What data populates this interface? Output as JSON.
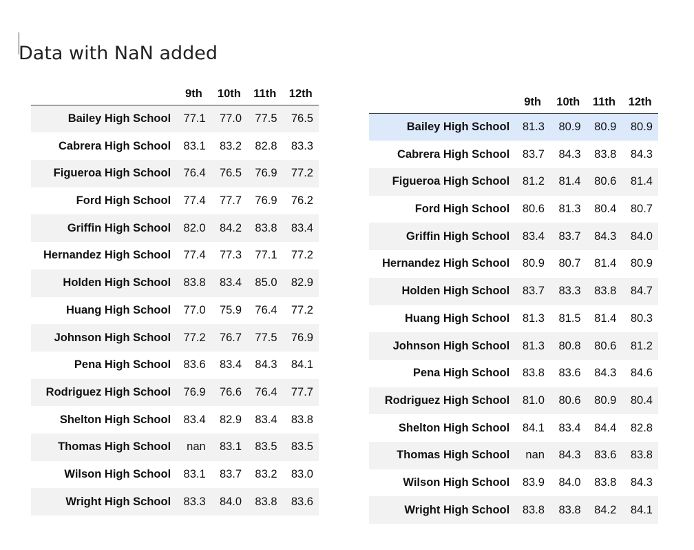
{
  "title": "Data with NaN added",
  "left_table": {
    "columns": [
      "",
      "9th",
      "10th",
      "11th",
      "12th"
    ],
    "rows": [
      {
        "name": "Bailey High School",
        "values": [
          "77.1",
          "77.0",
          "77.5",
          "76.5"
        ]
      },
      {
        "name": "Cabrera High School",
        "values": [
          "83.1",
          "83.2",
          "82.8",
          "83.3"
        ]
      },
      {
        "name": "Figueroa High School",
        "values": [
          "76.4",
          "76.5",
          "76.9",
          "77.2"
        ]
      },
      {
        "name": "Ford High School",
        "values": [
          "77.4",
          "77.7",
          "76.9",
          "76.2"
        ]
      },
      {
        "name": "Griffin High School",
        "values": [
          "82.0",
          "84.2",
          "83.8",
          "83.4"
        ]
      },
      {
        "name": "Hernandez High School",
        "values": [
          "77.4",
          "77.3",
          "77.1",
          "77.2"
        ]
      },
      {
        "name": "Holden High School",
        "values": [
          "83.8",
          "83.4",
          "85.0",
          "82.9"
        ]
      },
      {
        "name": "Huang High School",
        "values": [
          "77.0",
          "75.9",
          "76.4",
          "77.2"
        ]
      },
      {
        "name": "Johnson High School",
        "values": [
          "77.2",
          "76.7",
          "77.5",
          "76.9"
        ]
      },
      {
        "name": "Pena High School",
        "values": [
          "83.6",
          "83.4",
          "84.3",
          "84.1"
        ]
      },
      {
        "name": "Rodriguez High School",
        "values": [
          "76.9",
          "76.6",
          "76.4",
          "77.7"
        ]
      },
      {
        "name": "Shelton High School",
        "values": [
          "83.4",
          "82.9",
          "83.4",
          "83.8"
        ]
      },
      {
        "name": "Thomas High School",
        "values": [
          "nan",
          "83.1",
          "83.5",
          "83.5"
        ]
      },
      {
        "name": "Wilson High School",
        "values": [
          "83.1",
          "83.7",
          "83.2",
          "83.0"
        ]
      },
      {
        "name": "Wright High School",
        "values": [
          "83.3",
          "84.0",
          "83.8",
          "83.6"
        ]
      }
    ]
  },
  "right_table": {
    "columns": [
      "",
      "9th",
      "10th",
      "11th",
      "12th"
    ],
    "highlighted_row": 0,
    "highlight_color": "#dbe9fb",
    "rows": [
      {
        "name": "Bailey High School",
        "values": [
          "81.3",
          "80.9",
          "80.9",
          "80.9"
        ]
      },
      {
        "name": "Cabrera High School",
        "values": [
          "83.7",
          "84.3",
          "83.8",
          "84.3"
        ]
      },
      {
        "name": "Figueroa High School",
        "values": [
          "81.2",
          "81.4",
          "80.6",
          "81.4"
        ]
      },
      {
        "name": "Ford High School",
        "values": [
          "80.6",
          "81.3",
          "80.4",
          "80.7"
        ]
      },
      {
        "name": "Griffin High School",
        "values": [
          "83.4",
          "83.7",
          "84.3",
          "84.0"
        ]
      },
      {
        "name": "Hernandez High School",
        "values": [
          "80.9",
          "80.7",
          "81.4",
          "80.9"
        ]
      },
      {
        "name": "Holden High School",
        "values": [
          "83.7",
          "83.3",
          "83.8",
          "84.7"
        ]
      },
      {
        "name": "Huang High School",
        "values": [
          "81.3",
          "81.5",
          "81.4",
          "80.3"
        ]
      },
      {
        "name": "Johnson High School",
        "values": [
          "81.3",
          "80.8",
          "80.6",
          "81.2"
        ]
      },
      {
        "name": "Pena High School",
        "values": [
          "83.8",
          "83.6",
          "84.3",
          "84.6"
        ]
      },
      {
        "name": "Rodriguez High School",
        "values": [
          "81.0",
          "80.6",
          "80.9",
          "80.4"
        ]
      },
      {
        "name": "Shelton High School",
        "values": [
          "84.1",
          "83.4",
          "84.4",
          "82.8"
        ]
      },
      {
        "name": "Thomas High School",
        "values": [
          "nan",
          "84.3",
          "83.6",
          "83.8"
        ]
      },
      {
        "name": "Wilson High School",
        "values": [
          "83.9",
          "84.0",
          "83.8",
          "84.3"
        ]
      },
      {
        "name": "Wright High School",
        "values": [
          "83.8",
          "83.8",
          "84.2",
          "84.1"
        ]
      }
    ]
  }
}
